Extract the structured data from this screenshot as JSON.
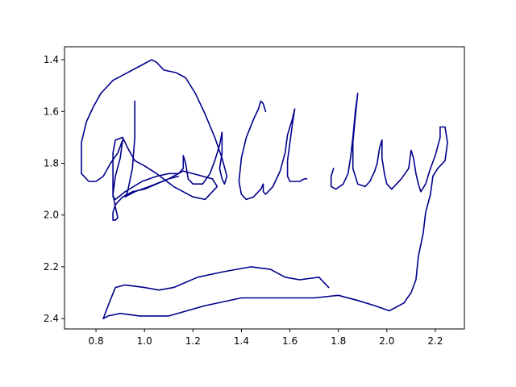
{
  "chart_data": {
    "type": "line",
    "title": "",
    "xlabel": "",
    "ylabel": "",
    "xlim": [
      0.67,
      2.32
    ],
    "ylim": [
      2.44,
      1.35
    ],
    "y_inverted": true,
    "grid": false,
    "legend": "none",
    "line_color": "#00008b",
    "x_ticks": [
      0.8,
      1.0,
      1.2,
      1.4,
      1.6,
      1.8,
      2.0,
      2.2
    ],
    "x_tick_labels": [
      "0.8",
      "1.0",
      "1.2",
      "1.4",
      "1.6",
      "1.8",
      "2.0",
      "2.2"
    ],
    "y_ticks": [
      1.4,
      1.6,
      1.8,
      2.0,
      2.2,
      2.4
    ],
    "y_tick_labels": [
      "1.4",
      "1.6",
      "1.8",
      "2.0",
      "2.2",
      "2.4"
    ],
    "series": [
      {
        "points": [
          [
            0.96,
            1.56
          ],
          [
            0.96,
            1.7
          ],
          [
            0.95,
            1.82
          ],
          [
            0.93,
            1.91
          ],
          [
            0.92,
            1.93
          ],
          [
            0.96,
            1.91
          ],
          [
            1.02,
            1.89
          ],
          [
            1.1,
            1.86
          ],
          [
            1.16,
            1.83
          ],
          [
            1.28,
            1.86
          ],
          [
            1.3,
            1.89
          ],
          [
            1.28,
            1.91
          ],
          [
            1.25,
            1.94
          ],
          [
            1.2,
            1.93
          ],
          [
            1.12,
            1.89
          ],
          [
            1.05,
            1.84
          ],
          [
            1.0,
            1.81
          ],
          [
            0.96,
            1.79
          ],
          [
            0.93,
            1.74
          ],
          [
            0.91,
            1.7
          ],
          [
            0.88,
            1.71
          ],
          [
            0.87,
            1.76
          ],
          [
            0.87,
            1.83
          ],
          [
            0.87,
            1.88
          ],
          [
            0.87,
            1.93
          ],
          [
            0.88,
            1.94
          ],
          [
            0.92,
            1.91
          ],
          [
            0.99,
            1.87
          ],
          [
            1.05,
            1.85
          ],
          [
            1.1,
            1.84
          ],
          [
            1.14,
            1.84
          ],
          [
            1.16,
            1.82
          ],
          [
            1.16,
            1.77
          ],
          [
            1.17,
            1.8
          ],
          [
            1.18,
            1.86
          ],
          [
            1.2,
            1.88
          ],
          [
            1.24,
            1.88
          ],
          [
            1.27,
            1.84
          ],
          [
            1.29,
            1.79
          ],
          [
            1.31,
            1.73
          ],
          [
            1.32,
            1.68
          ],
          [
            1.32,
            1.76
          ],
          [
            1.31,
            1.82
          ],
          [
            1.32,
            1.86
          ],
          [
            1.33,
            1.88
          ],
          [
            1.34,
            1.85
          ],
          [
            1.32,
            1.78
          ],
          [
            1.29,
            1.7
          ],
          [
            1.25,
            1.61
          ],
          [
            1.21,
            1.53
          ],
          [
            1.17,
            1.47
          ],
          [
            1.13,
            1.45
          ],
          [
            1.08,
            1.44
          ],
          [
            1.05,
            1.41
          ],
          [
            1.03,
            1.4
          ],
          [
            0.99,
            1.42
          ],
          [
            0.93,
            1.45
          ],
          [
            0.87,
            1.48
          ],
          [
            0.82,
            1.53
          ],
          [
            0.79,
            1.58
          ],
          [
            0.76,
            1.64
          ],
          [
            0.74,
            1.72
          ],
          [
            0.74,
            1.8
          ],
          [
            0.74,
            1.84
          ],
          [
            0.77,
            1.87
          ],
          [
            0.8,
            1.87
          ],
          [
            0.83,
            1.85
          ],
          [
            0.86,
            1.8
          ],
          [
            0.89,
            1.76
          ],
          [
            0.91,
            1.71
          ],
          [
            0.9,
            1.78
          ],
          [
            0.88,
            1.85
          ],
          [
            0.87,
            1.92
          ],
          [
            0.88,
            1.97
          ],
          [
            0.89,
            2.01
          ],
          [
            0.88,
            2.02
          ],
          [
            0.87,
            2.02
          ],
          [
            0.87,
            1.99
          ],
          [
            0.88,
            1.96
          ],
          [
            0.91,
            1.93
          ],
          [
            0.95,
            1.91
          ],
          [
            1.0,
            1.9
          ],
          [
            1.05,
            1.88
          ],
          [
            1.1,
            1.86
          ],
          [
            1.14,
            1.85
          ]
        ]
      },
      {
        "points": [
          [
            1.5,
            1.6
          ],
          [
            1.49,
            1.57
          ],
          [
            1.48,
            1.56
          ],
          [
            1.47,
            1.59
          ],
          [
            1.45,
            1.63
          ],
          [
            1.42,
            1.7
          ],
          [
            1.4,
            1.78
          ],
          [
            1.39,
            1.87
          ],
          [
            1.4,
            1.92
          ],
          [
            1.42,
            1.94
          ],
          [
            1.45,
            1.93
          ],
          [
            1.48,
            1.9
          ],
          [
            1.49,
            1.88
          ],
          [
            1.49,
            1.91
          ],
          [
            1.5,
            1.92
          ],
          [
            1.53,
            1.89
          ],
          [
            1.56,
            1.83
          ],
          [
            1.58,
            1.76
          ],
          [
            1.59,
            1.69
          ],
          [
            1.61,
            1.63
          ],
          [
            1.62,
            1.59
          ],
          [
            1.61,
            1.65
          ],
          [
            1.6,
            1.72
          ],
          [
            1.59,
            1.79
          ],
          [
            1.59,
            1.85
          ],
          [
            1.6,
            1.87
          ],
          [
            1.62,
            1.87
          ],
          [
            1.64,
            1.87
          ],
          [
            1.66,
            1.86
          ],
          [
            1.67,
            1.86
          ]
        ]
      },
      {
        "points": [
          [
            1.78,
            1.82
          ],
          [
            1.77,
            1.85
          ],
          [
            1.77,
            1.89
          ],
          [
            1.79,
            1.9
          ],
          [
            1.82,
            1.88
          ],
          [
            1.84,
            1.84
          ],
          [
            1.85,
            1.78
          ],
          [
            1.86,
            1.7
          ],
          [
            1.87,
            1.6
          ],
          [
            1.88,
            1.53
          ],
          [
            1.87,
            1.62
          ],
          [
            1.86,
            1.72
          ],
          [
            1.86,
            1.82
          ],
          [
            1.88,
            1.88
          ],
          [
            1.91,
            1.89
          ],
          [
            1.93,
            1.87
          ],
          [
            1.95,
            1.83
          ],
          [
            1.96,
            1.8
          ],
          [
            1.97,
            1.74
          ],
          [
            1.98,
            1.71
          ],
          [
            1.98,
            1.78
          ],
          [
            1.99,
            1.84
          ],
          [
            2.0,
            1.88
          ],
          [
            2.02,
            1.9
          ],
          [
            2.06,
            1.86
          ],
          [
            2.09,
            1.82
          ],
          [
            2.1,
            1.75
          ],
          [
            2.11,
            1.78
          ],
          [
            2.12,
            1.84
          ],
          [
            2.13,
            1.88
          ],
          [
            2.14,
            1.91
          ],
          [
            2.16,
            1.88
          ],
          [
            2.18,
            1.82
          ],
          [
            2.2,
            1.77
          ],
          [
            2.22,
            1.7
          ],
          [
            2.22,
            1.66
          ],
          [
            2.24,
            1.66
          ],
          [
            2.25,
            1.72
          ],
          [
            2.24,
            1.79
          ],
          [
            2.21,
            1.82
          ],
          [
            2.19,
            1.85
          ],
          [
            2.18,
            1.92
          ],
          [
            2.16,
            1.99
          ],
          [
            2.15,
            2.07
          ],
          [
            2.13,
            2.16
          ],
          [
            2.12,
            2.25
          ],
          [
            2.1,
            2.3
          ],
          [
            2.07,
            2.34
          ],
          [
            2.01,
            2.37
          ],
          [
            1.95,
            2.35
          ],
          [
            1.88,
            2.33
          ],
          [
            1.8,
            2.31
          ],
          [
            1.7,
            2.32
          ],
          [
            1.55,
            2.32
          ],
          [
            1.4,
            2.32
          ],
          [
            1.25,
            2.35
          ],
          [
            1.1,
            2.39
          ],
          [
            0.98,
            2.39
          ],
          [
            0.9,
            2.38
          ],
          [
            0.85,
            2.39
          ],
          [
            0.83,
            2.4
          ],
          [
            0.85,
            2.35
          ],
          [
            0.88,
            2.28
          ],
          [
            0.92,
            2.27
          ],
          [
            1.0,
            2.28
          ],
          [
            1.06,
            2.29
          ],
          [
            1.12,
            2.28
          ],
          [
            1.22,
            2.24
          ],
          [
            1.32,
            2.22
          ],
          [
            1.44,
            2.2
          ],
          [
            1.52,
            2.21
          ],
          [
            1.58,
            2.24
          ],
          [
            1.64,
            2.25
          ],
          [
            1.72,
            2.24
          ],
          [
            1.76,
            2.28
          ]
        ]
      }
    ]
  }
}
